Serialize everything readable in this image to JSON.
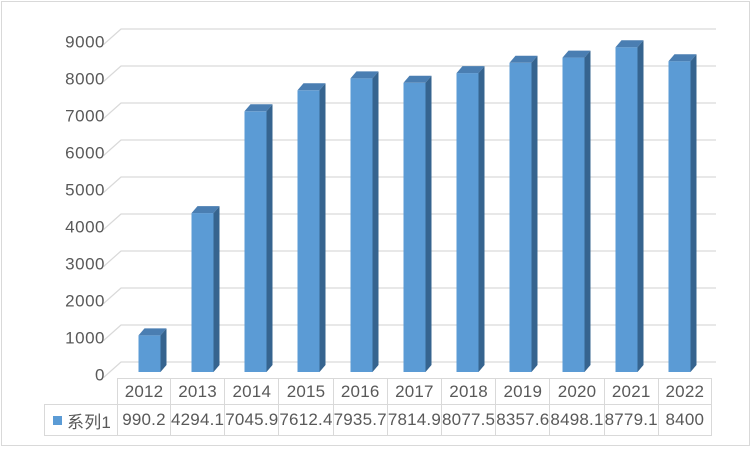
{
  "chart_data": {
    "type": "bar",
    "style": "3d-column",
    "title": "",
    "xlabel": "",
    "ylabel": "",
    "categories": [
      "2012",
      "2013",
      "2014",
      "2015",
      "2016",
      "2017",
      "2018",
      "2019",
      "2020",
      "2021",
      "2022"
    ],
    "series": [
      {
        "name": "系列1",
        "values": [
          990.2,
          4294.1,
          7045.9,
          7612.4,
          7935.7,
          7814.9,
          8077.5,
          8357.6,
          8498.1,
          8779.1,
          8400
        ],
        "display_values": [
          "990.2",
          "4294.1",
          "7045.9",
          "7612.4",
          "7935.7",
          "7814.9",
          "8077.5",
          "8357.6",
          "8498.1",
          "8779.1",
          "8400"
        ]
      }
    ],
    "yticks": [
      0,
      1000,
      2000,
      3000,
      4000,
      5000,
      6000,
      7000,
      8000,
      9000
    ],
    "ylim": [
      0,
      9000
    ],
    "grid": true,
    "legend_position": "data-table-left",
    "colors": {
      "bar_front": "#5B9BD5",
      "bar_top": "#4A7EB2",
      "bar_side": "#36648F",
      "gridline": "#D9D9D9",
      "axis_text": "#595959",
      "table_border": "#D9D9D9",
      "table_text": "#595959",
      "frame_border": "#D9D9D9",
      "legend_marker": "#5B9BD5"
    }
  }
}
